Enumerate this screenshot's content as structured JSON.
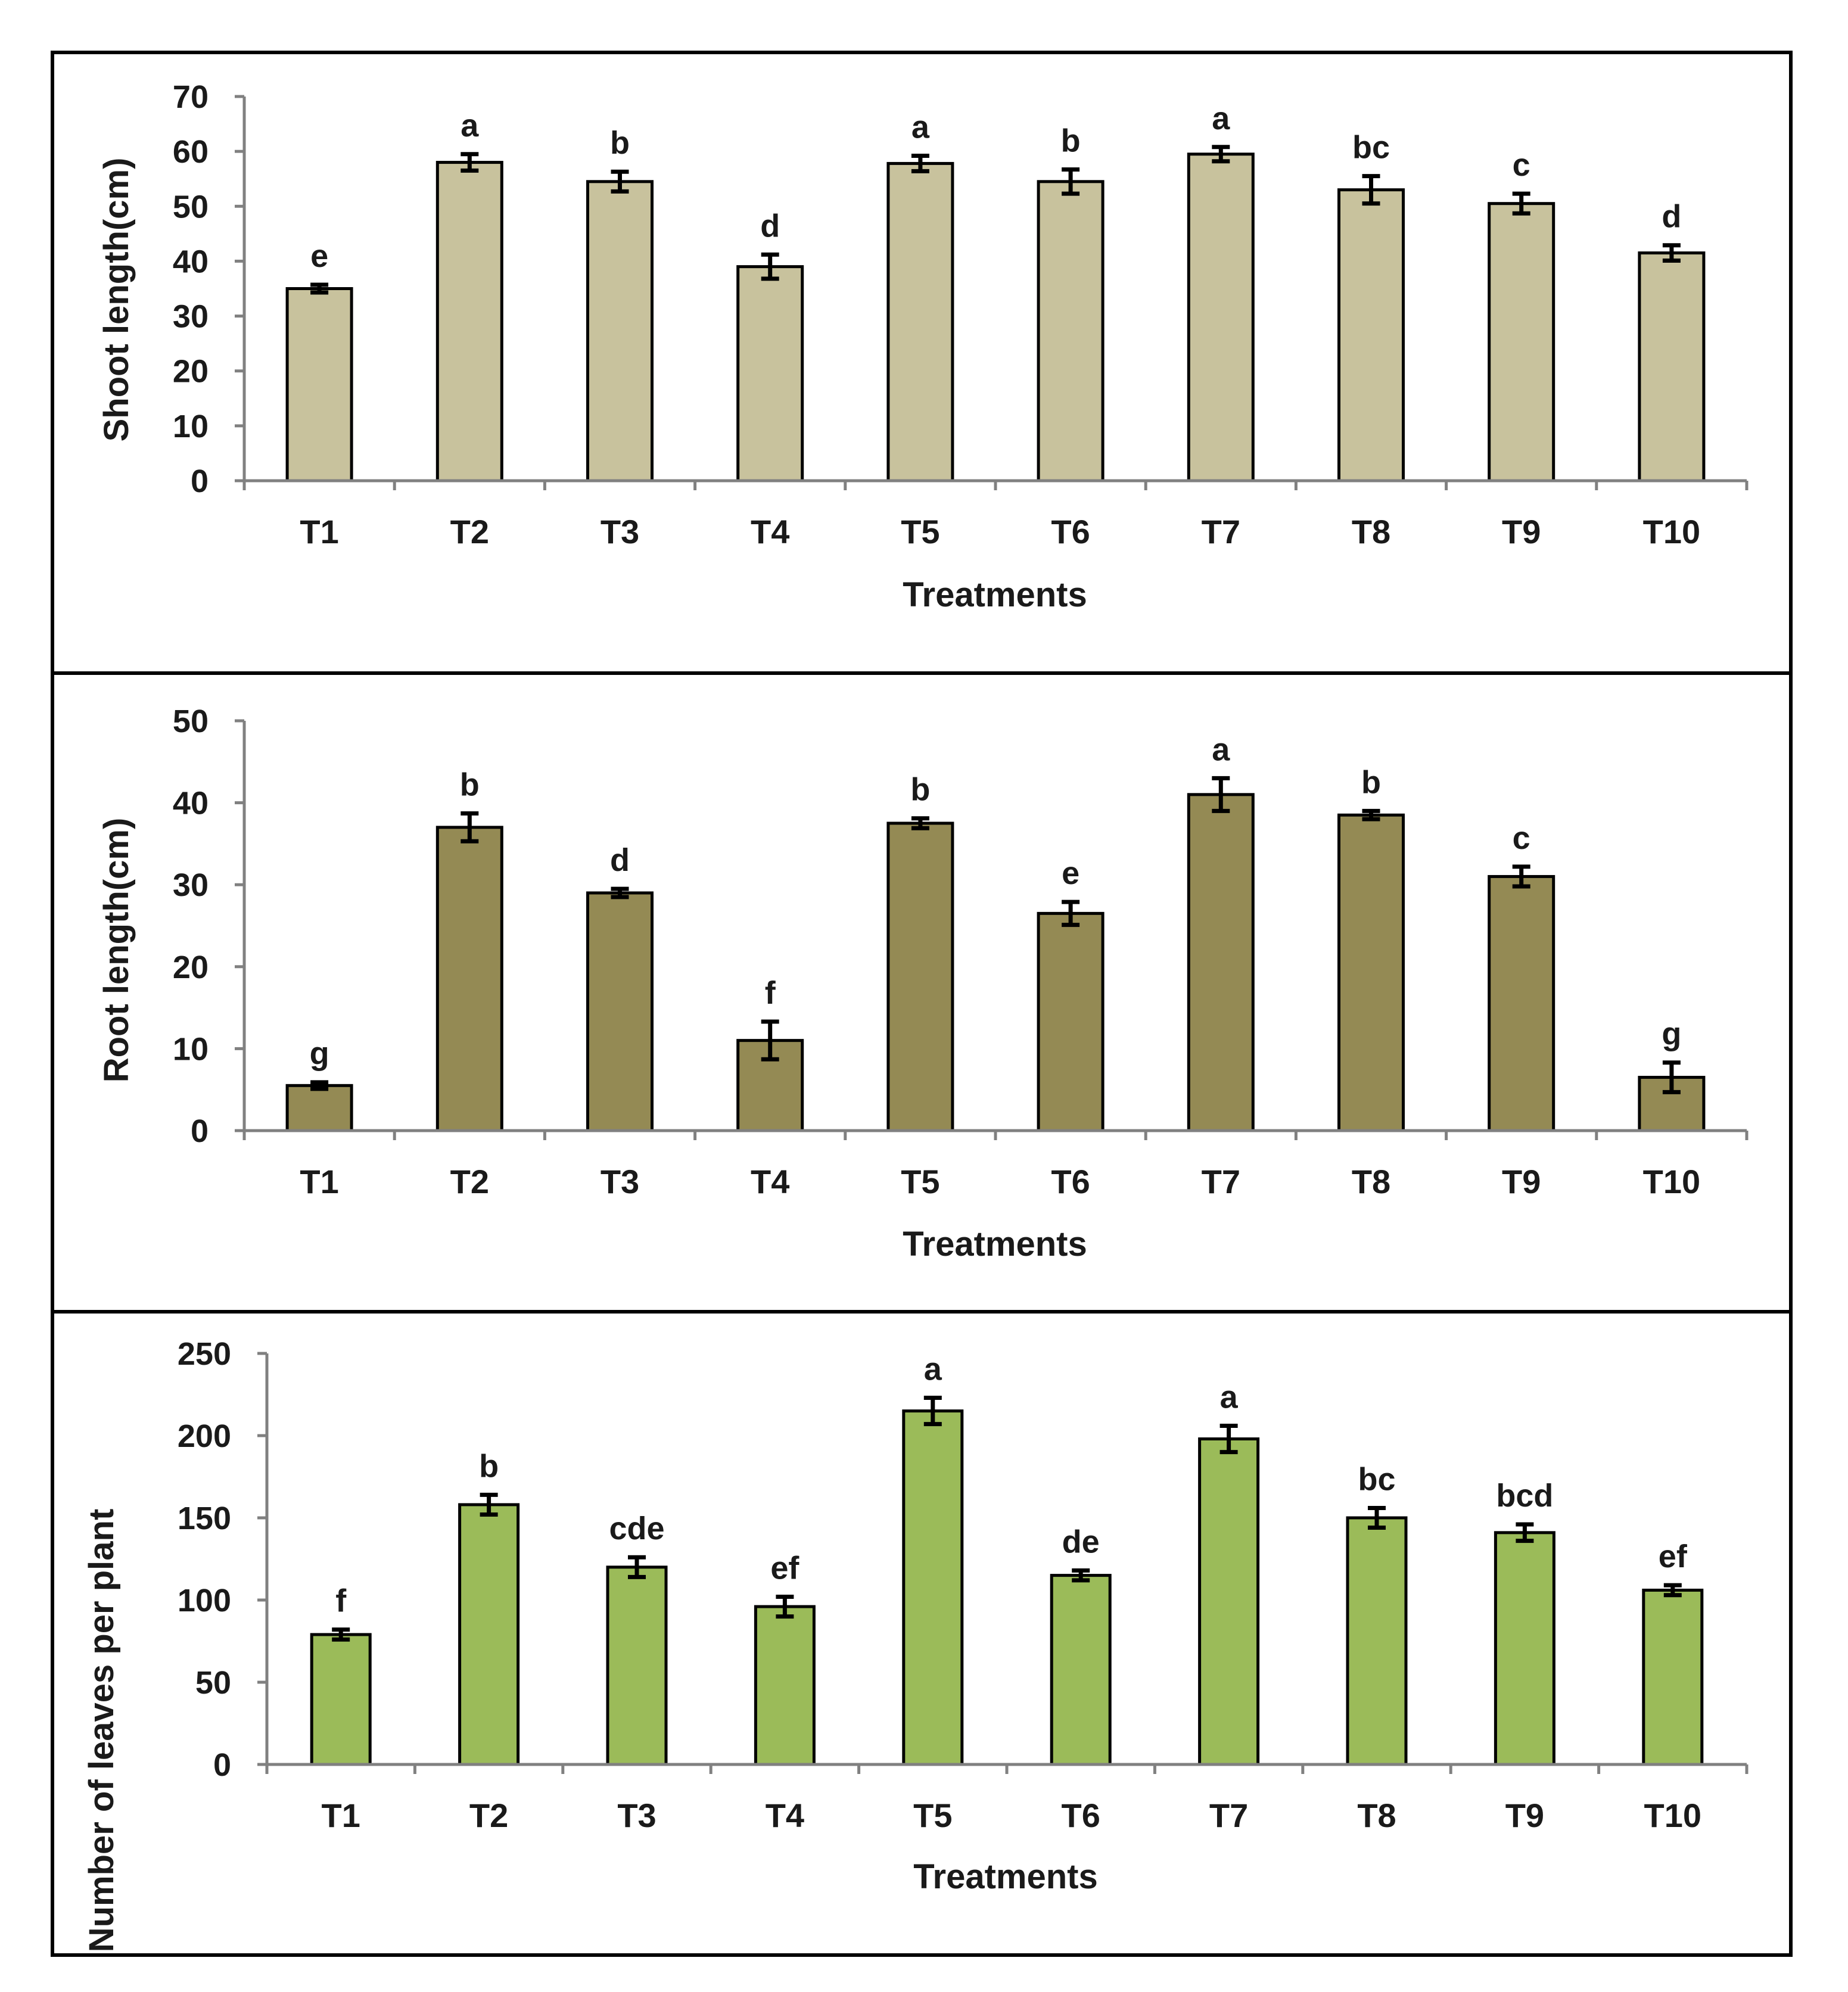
{
  "chart_data": [
    {
      "type": "bar",
      "title": "",
      "xlabel": "Treatments",
      "ylabel": "Shoot length(cm)",
      "ylim": [
        0,
        70
      ],
      "yticks": [
        0,
        10,
        20,
        30,
        40,
        50,
        60,
        70
      ],
      "categories": [
        "T1",
        "T2",
        "T3",
        "T4",
        "T5",
        "T6",
        "T7",
        "T8",
        "T9",
        "T10"
      ],
      "values": [
        35,
        58,
        54.5,
        39,
        57.8,
        54.5,
        59.5,
        53,
        50.5,
        41.5
      ],
      "errors": [
        0.7,
        1.5,
        1.8,
        2.2,
        1.4,
        2.2,
        1.3,
        2.5,
        1.8,
        1.4
      ],
      "labels": [
        "e",
        "a",
        "b",
        "d",
        "a",
        "b",
        "a",
        "bc",
        "c",
        "d"
      ],
      "color": "#c8c29d"
    },
    {
      "type": "bar",
      "title": "",
      "xlabel": "Treatments",
      "ylabel": "Root length(cm)",
      "ylim": [
        0,
        50
      ],
      "yticks": [
        0,
        10,
        20,
        30,
        40,
        50
      ],
      "categories": [
        "T1",
        "T2",
        "T3",
        "T4",
        "T5",
        "T6",
        "T7",
        "T8",
        "T9",
        "T10"
      ],
      "values": [
        5.5,
        37,
        29,
        11,
        37.5,
        26.5,
        41,
        38.5,
        31,
        6.5
      ],
      "errors": [
        0.4,
        1.7,
        0.5,
        2.3,
        0.6,
        1.4,
        2.0,
        0.5,
        1.2,
        1.8
      ],
      "labels": [
        "g",
        "b",
        "d",
        "f",
        "b",
        "e",
        "a",
        "b",
        "c",
        "g"
      ],
      "color": "#948a54"
    },
    {
      "type": "bar",
      "title": "",
      "xlabel": "Treatments",
      "ylabel": "Number of leaves per plant",
      "ylim": [
        0,
        250
      ],
      "yticks": [
        0,
        50,
        100,
        150,
        200,
        250
      ],
      "categories": [
        "T1",
        "T2",
        "T3",
        "T4",
        "T5",
        "T6",
        "T7",
        "T8",
        "T9",
        "T10"
      ],
      "values": [
        79,
        158,
        120,
        96,
        215,
        115,
        198,
        150,
        141,
        106
      ],
      "errors": [
        3,
        6,
        6,
        6,
        8,
        3,
        8,
        6,
        5,
        3
      ],
      "labels": [
        "f",
        "b",
        "cde",
        "ef",
        "a",
        "de",
        "a",
        "bc",
        "bcd",
        "ef"
      ],
      "color": "#9bbb59"
    }
  ]
}
